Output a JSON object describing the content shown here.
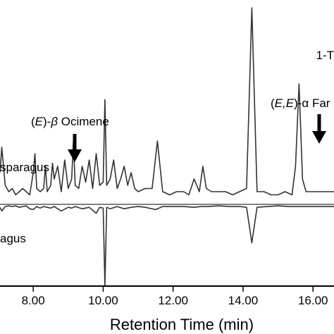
{
  "chart_data": {
    "type": "line",
    "xlabel": "Retention Time (min)",
    "xlim": [
      7.05,
      16.6
    ],
    "xticks": [
      "8.00",
      "10.00",
      "12.00",
      "14.00",
      "16.00"
    ],
    "series": [
      {
        "name": "sparagus",
        "direction": "up",
        "color": "#333333",
        "x": [
          7.05,
          7.1,
          7.2,
          7.3,
          7.4,
          7.5,
          7.6,
          7.7,
          7.8,
          7.9,
          8.0,
          8.05,
          8.1,
          8.2,
          8.3,
          8.35,
          8.4,
          8.5,
          8.55,
          8.6,
          8.7,
          8.8,
          8.9,
          9.0,
          9.1,
          9.15,
          9.2,
          9.3,
          9.4,
          9.5,
          9.6,
          9.7,
          9.8,
          9.9,
          10.0,
          10.05,
          10.1,
          10.2,
          10.3,
          10.4,
          10.5,
          10.6,
          10.7,
          10.8,
          10.9,
          11.0,
          11.2,
          11.4,
          11.55,
          11.7,
          11.9,
          12.1,
          12.3,
          12.45,
          12.6,
          12.75,
          12.85,
          12.95,
          13.1,
          13.3,
          13.5,
          13.7,
          13.9,
          14.1,
          14.25,
          14.4,
          14.6,
          14.8,
          15.0,
          15.2,
          15.4,
          15.5,
          15.6,
          15.7,
          15.8,
          16.0,
          16.2,
          16.4,
          16.6
        ],
        "y": [
          0.1,
          0.18,
          0.06,
          0.04,
          0.05,
          0.03,
          0.04,
          0.05,
          0.04,
          0.03,
          0.1,
          0.16,
          0.05,
          0.04,
          0.05,
          0.12,
          0.04,
          0.06,
          0.13,
          0.08,
          0.12,
          0.04,
          0.14,
          0.05,
          0.08,
          0.2,
          0.06,
          0.05,
          0.12,
          0.07,
          0.14,
          0.05,
          0.16,
          0.06,
          0.07,
          0.33,
          0.06,
          0.08,
          0.14,
          0.05,
          0.08,
          0.12,
          0.06,
          0.1,
          0.05,
          0.04,
          0.05,
          0.05,
          0.2,
          0.04,
          0.03,
          0.04,
          0.04,
          0.03,
          0.08,
          0.04,
          0.12,
          0.05,
          0.04,
          0.04,
          0.04,
          0.03,
          0.04,
          0.05,
          0.62,
          0.04,
          0.04,
          0.03,
          0.03,
          0.04,
          0.03,
          0.12,
          0.38,
          0.08,
          0.04,
          0.04,
          0.04,
          0.04,
          0.04
        ]
      },
      {
        "name": "agus",
        "direction": "down",
        "color": "#333333",
        "x": [
          7.05,
          7.1,
          7.2,
          7.3,
          7.4,
          7.5,
          7.6,
          7.7,
          7.8,
          7.9,
          8.0,
          8.1,
          8.2,
          8.3,
          8.4,
          8.5,
          8.6,
          8.8,
          9.0,
          9.1,
          9.2,
          9.4,
          9.6,
          9.8,
          9.9,
          10.0,
          10.05,
          10.1,
          10.2,
          10.4,
          10.6,
          10.8,
          11.0,
          11.2,
          11.5,
          11.7,
          12.0,
          12.3,
          12.6,
          12.8,
          13.0,
          13.3,
          13.6,
          13.9,
          14.1,
          14.25,
          14.4,
          14.7,
          15.0,
          15.3,
          15.6,
          15.9,
          16.2,
          16.6
        ],
        "y": [
          0.04,
          0.09,
          0.03,
          0.02,
          0.03,
          0.02,
          0.04,
          0.03,
          0.02,
          0.06,
          0.07,
          0.03,
          0.05,
          0.03,
          0.04,
          0.05,
          0.03,
          0.09,
          0.04,
          0.05,
          0.03,
          0.06,
          0.04,
          0.12,
          0.04,
          0.05,
          1.1,
          0.04,
          0.06,
          0.03,
          0.06,
          0.04,
          0.03,
          0.04,
          0.07,
          0.03,
          0.03,
          0.03,
          0.04,
          0.03,
          0.03,
          0.02,
          0.03,
          0.03,
          0.04,
          0.52,
          0.04,
          0.03,
          0.02,
          0.03,
          0.03,
          0.03,
          0.03,
          0.03
        ]
      }
    ],
    "annotations": [
      {
        "label_prefix": "(",
        "label_italic": "E",
        "label_mid": ")-",
        "label_greek": "β",
        "label_suffix": " Ocimene",
        "x": 9.15
      },
      {
        "label_prefix": "(",
        "label_italic": "E,E",
        "label_mid": ")-α ",
        "label_suffix": "Far",
        "x": 15.6
      }
    ],
    "corner_text": "1-T"
  }
}
